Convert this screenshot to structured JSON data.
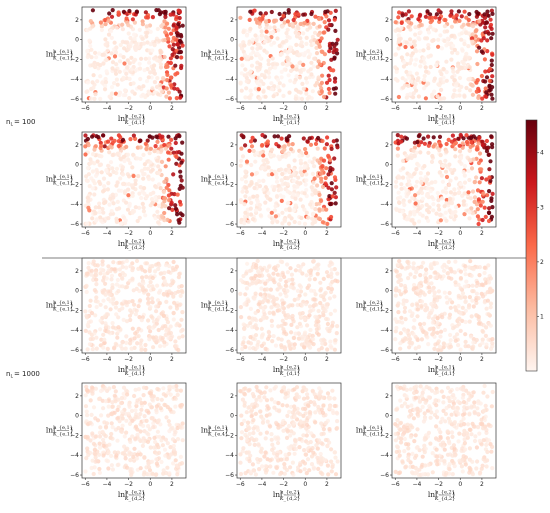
{
  "chart_data": {
    "type": "scatter",
    "row_labels": [
      {
        "label": "n_L = 100",
        "base": "n",
        "sub": "L",
        "value": "= 100"
      },
      {
        "label": "n_L = 1000",
        "base": "n",
        "sub": "L",
        "value": "= 1000"
      }
    ],
    "x_ticks": [
      -6,
      -4,
      -2,
      0,
      2
    ],
    "y_ticks": [
      2,
      0,
      -2,
      -4,
      -6
    ],
    "xlim": [
      -6.3,
      3.3
    ],
    "ylim": [
      -6.3,
      3.3
    ],
    "colorbar": {
      "colormap": "Reds",
      "range": [
        0,
        4.6
      ],
      "ticks": [
        1,
        2,
        3,
        4
      ]
    },
    "ln_prefix": "ln",
    "panels": [
      {
        "row": 0,
        "col": 0,
        "xlabel": {
          "num": "h_{e,2}",
          "den": "K_{d,1}"
        },
        "ylabel": {
          "num": "h_{e,1}",
          "den": "K_{e,1}"
        },
        "intensity": "high"
      },
      {
        "row": 0,
        "col": 1,
        "xlabel": {
          "num": "h_{e,2}",
          "den": "K_{d,1}"
        },
        "ylabel": {
          "num": "h_{e,1}",
          "den": "K_{d,1}"
        },
        "intensity": "high"
      },
      {
        "row": 0,
        "col": 2,
        "xlabel": {
          "num": "h_{e,1}",
          "den": "K_{d,1}"
        },
        "ylabel": {
          "num": "h_{e,2}",
          "den": "K_{d,1}"
        },
        "intensity": "high"
      },
      {
        "row": 1,
        "col": 0,
        "xlabel": {
          "num": "h_{e,2}",
          "den": "K_{d,2}"
        },
        "ylabel": {
          "num": "h_{e,1}",
          "den": "K_{e,1}"
        },
        "intensity": "high"
      },
      {
        "row": 1,
        "col": 1,
        "xlabel": {
          "num": "h_{e,2}",
          "den": "K_{d,2}"
        },
        "ylabel": {
          "num": "h_{e,1}",
          "den": "K_{e,4}"
        },
        "intensity": "high"
      },
      {
        "row": 1,
        "col": 2,
        "xlabel": {
          "num": "h_{e,2}",
          "den": "K_{d,2}"
        },
        "ylabel": {
          "num": "h_{e,1}",
          "den": "K_{d,1}"
        },
        "intensity": "high"
      },
      {
        "row": 2,
        "col": 0,
        "xlabel": {
          "num": "h_{e,1}",
          "den": "K_{d,1}"
        },
        "ylabel": {
          "num": "h_{e,1}",
          "den": "K_{e,1}"
        },
        "intensity": "low"
      },
      {
        "row": 2,
        "col": 1,
        "xlabel": {
          "num": "h_{e,2}",
          "den": "K_{d,1}"
        },
        "ylabel": {
          "num": "h_{e,1}",
          "den": "K_{d,1}"
        },
        "intensity": "low"
      },
      {
        "row": 2,
        "col": 2,
        "xlabel": {
          "num": "h_{e,1}",
          "den": "K_{d,1}"
        },
        "ylabel": {
          "num": "h_{e,2}",
          "den": "K_{d,1}"
        },
        "intensity": "low"
      },
      {
        "row": 3,
        "col": 0,
        "xlabel": {
          "num": "h_{e,2}",
          "den": "K_{d,2}"
        },
        "ylabel": {
          "num": "h_{e,1}",
          "den": "K_{e,1}"
        },
        "intensity": "low"
      },
      {
        "row": 3,
        "col": 1,
        "xlabel": {
          "num": "h_{e,2}",
          "den": "K_{d,2}"
        },
        "ylabel": {
          "num": "h_{e,1}",
          "den": "K_{e,4}"
        },
        "intensity": "low"
      },
      {
        "row": 3,
        "col": 2,
        "xlabel": {
          "num": "h_{e,2}",
          "den": "K_{d,2}"
        },
        "ylabel": {
          "num": "h_{e,1}",
          "den": "K_{d,1}"
        },
        "intensity": "low"
      }
    ]
  }
}
